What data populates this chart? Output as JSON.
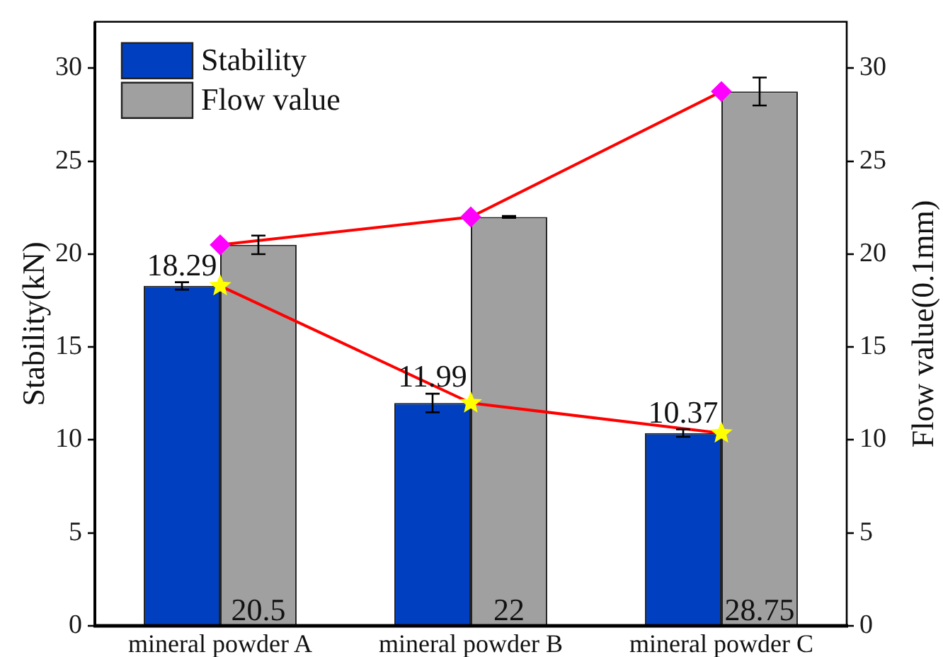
{
  "chart_data": {
    "type": "bar",
    "categories": [
      "mineral powder A",
      "mineral powder B",
      "mineral powder C"
    ],
    "ylabel": "Stability(kN)",
    "y2label": "Flow value(0.1mm)",
    "ylim": [
      0,
      32.5
    ],
    "yticks": [
      0,
      5,
      10,
      15,
      20,
      25,
      30
    ],
    "y2lim": [
      0,
      32.5
    ],
    "y2ticks": [
      0,
      5,
      10,
      15,
      20,
      25,
      30
    ],
    "legend": "top left",
    "series": [
      {
        "name": "Stability",
        "color": "#0040c0",
        "values": [
          18.29,
          11.99,
          10.37
        ],
        "errors": [
          0.2,
          0.5,
          0.2
        ],
        "value_labels": [
          "18.29",
          "11.99",
          "10.37"
        ]
      },
      {
        "name": "Flow value",
        "axis": "y2",
        "color": "#a0a0a0",
        "values": [
          20.5,
          22,
          28.75
        ],
        "errors": [
          0.5,
          0.05,
          0.75
        ],
        "value_labels": [
          "20.5",
          "22",
          "28.75"
        ]
      },
      {
        "type": "line",
        "color": "#ff0000",
        "colors": [
          "#ffff00",
          "#ffff00",
          "#ffff00"
        ],
        "marker": "star",
        "values": [
          18.29,
          11.99,
          10.37
        ]
      },
      {
        "type": "line",
        "axis": "y2",
        "color": "#ff0000",
        "colors": [
          "#ff00ff",
          "#ff00ff",
          "#ff00ff"
        ],
        "marker": "diamond",
        "values": [
          20.5,
          22,
          28.75
        ]
      }
    ]
  }
}
